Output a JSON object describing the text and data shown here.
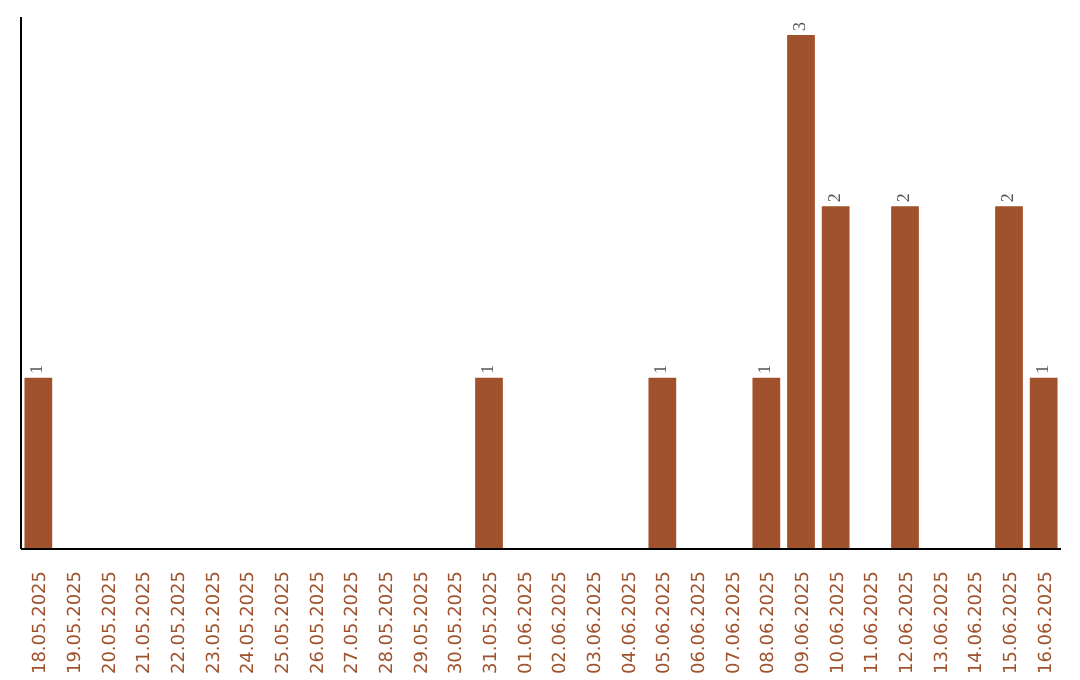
{
  "chart_data": {
    "type": "bar",
    "categories": [
      "18.05.2025",
      "19.05.2025",
      "20.05.2025",
      "21.05.2025",
      "22.05.2025",
      "23.05.2025",
      "24.05.2025",
      "25.05.2025",
      "26.05.2025",
      "27.05.2025",
      "28.05.2025",
      "29.05.2025",
      "30.05.2025",
      "31.05.2025",
      "01.06.2025",
      "02.06.2025",
      "03.06.2025",
      "04.06.2025",
      "05.06.2025",
      "06.06.2025",
      "07.06.2025",
      "08.06.2025",
      "09.06.2025",
      "10.06.2025",
      "11.06.2025",
      "12.06.2025",
      "13.06.2025",
      "14.06.2025",
      "15.06.2025",
      "16.06.2025"
    ],
    "values": [
      1,
      0,
      0,
      0,
      0,
      0,
      0,
      0,
      0,
      0,
      0,
      0,
      0,
      1,
      0,
      0,
      0,
      0,
      1,
      0,
      0,
      1,
      3,
      2,
      0,
      2,
      0,
      0,
      2,
      1
    ],
    "value_labels": [
      "1",
      null,
      null,
      null,
      null,
      null,
      null,
      null,
      null,
      null,
      null,
      null,
      null,
      "1",
      null,
      null,
      null,
      null,
      "1",
      null,
      null,
      "1",
      "3",
      "2",
      null,
      "2",
      null,
      null,
      "2",
      "1"
    ],
    "color": "#a0522d",
    "grid": false
  }
}
